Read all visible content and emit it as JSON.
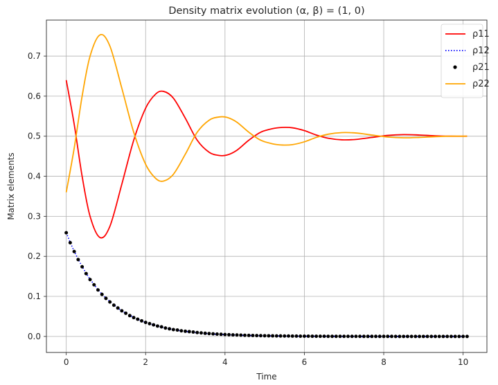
{
  "chart_data": {
    "type": "line",
    "title": "Density matrix evolution (α, β) = (1, 0)",
    "xlabel": "Time",
    "ylabel": "Matrix elements",
    "xlim": [
      -0.5,
      10.6
    ],
    "ylim": [
      -0.04,
      0.79
    ],
    "xticks": [
      0,
      2,
      4,
      6,
      8,
      10
    ],
    "yticks": [
      0.0,
      0.1,
      0.2,
      0.3,
      0.4,
      0.5,
      0.6,
      0.7
    ],
    "grid": true,
    "legend_position": "top-right",
    "series": [
      {
        "name": "ρ11",
        "style": "solid",
        "color": "#ff0000",
        "x": [
          0,
          0.2,
          0.4,
          0.6,
          0.85,
          1.1,
          1.4,
          1.7,
          2.0,
          2.25,
          2.45,
          2.7,
          3.0,
          3.3,
          3.6,
          3.85,
          4.05,
          4.3,
          4.6,
          4.9,
          5.2,
          5.45,
          5.7,
          6.0,
          6.3,
          6.6,
          6.95,
          7.3,
          7.7,
          8.1,
          8.5,
          8.9,
          9.3,
          9.7,
          10.1
        ],
        "y": [
          0.64,
          0.53,
          0.4,
          0.3,
          0.247,
          0.275,
          0.38,
          0.49,
          0.57,
          0.605,
          0.612,
          0.595,
          0.545,
          0.49,
          0.46,
          0.452,
          0.453,
          0.465,
          0.49,
          0.51,
          0.519,
          0.522,
          0.521,
          0.514,
          0.503,
          0.495,
          0.491,
          0.492,
          0.497,
          0.502,
          0.504,
          0.503,
          0.501,
          0.5,
          0.5
        ]
      },
      {
        "name": "ρ12",
        "style": "dotted",
        "color": "#0000ff",
        "x": [
          0,
          0.1,
          0.2,
          0.3,
          0.4,
          0.5,
          0.6,
          0.7,
          0.8,
          0.9,
          1.0,
          1.2,
          1.4,
          1.6,
          1.8,
          2.0,
          2.3,
          2.6,
          3.0,
          3.5,
          4.0,
          4.5,
          5.0,
          5.5,
          6.0,
          7.0,
          8.0,
          9.0,
          10.1
        ],
        "y": [
          0.259,
          0.235,
          0.213,
          0.193,
          0.175,
          0.158,
          0.143,
          0.13,
          0.117,
          0.106,
          0.096,
          0.079,
          0.064,
          0.053,
          0.043,
          0.035,
          0.026,
          0.019,
          0.0125,
          0.0074,
          0.0044,
          0.0026,
          0.0016,
          0.0009,
          0.0005,
          0.0002,
          0.0001,
          0.0,
          0.0
        ]
      },
      {
        "name": "ρ21",
        "style": "dots",
        "color": "#000000",
        "x": [
          0,
          0.1,
          0.2,
          0.3,
          0.4,
          0.5,
          0.6,
          0.7,
          0.8,
          0.9,
          1.0,
          1.1,
          1.2,
          1.3,
          1.4,
          1.5,
          1.6,
          1.7,
          1.8,
          1.9,
          2.0,
          2.1,
          2.2,
          2.3,
          2.4,
          2.5,
          2.6,
          2.7,
          2.8,
          2.9,
          3.0,
          3.1,
          3.2,
          3.3,
          3.4,
          3.5,
          3.6,
          3.7,
          3.8,
          3.9,
          4.0,
          4.1,
          4.2,
          4.3,
          4.4,
          4.5,
          4.6,
          4.7,
          4.8,
          4.9,
          5.0,
          5.1,
          5.2,
          5.3,
          5.4,
          5.5,
          5.6,
          5.7,
          5.8,
          5.9,
          6.0,
          6.1,
          6.2,
          6.3,
          6.4,
          6.5,
          6.6,
          6.7,
          6.8,
          6.9,
          7.0,
          7.1,
          7.2,
          7.3,
          7.4,
          7.5,
          7.6,
          7.7,
          7.8,
          7.9,
          8.0,
          8.1,
          8.2,
          8.3,
          8.4,
          8.5,
          8.6,
          8.7,
          8.8,
          8.9,
          9.0,
          9.1,
          9.2,
          9.3,
          9.4,
          9.5,
          9.6,
          9.7,
          9.8,
          9.9,
          10.0,
          10.1
        ],
        "y": [
          0.259,
          0.234,
          0.212,
          0.192,
          0.174,
          0.157,
          0.142,
          0.129,
          0.116,
          0.105,
          0.095,
          0.086,
          0.078,
          0.071,
          0.064,
          0.058,
          0.052,
          0.047,
          0.043,
          0.039,
          0.035,
          0.032,
          0.029,
          0.026,
          0.024,
          0.021,
          0.019,
          0.017,
          0.016,
          0.014,
          0.013,
          0.012,
          0.011,
          0.0097,
          0.0088,
          0.0079,
          0.0072,
          0.0065,
          0.0059,
          0.0053,
          0.0048,
          0.0044,
          0.0039,
          0.0036,
          0.0032,
          0.0029,
          0.0026,
          0.0024,
          0.0022,
          0.0019,
          0.0018,
          0.0016,
          0.0014,
          0.0013,
          0.0012,
          0.0011,
          0.001,
          0.0009,
          0.0008,
          0.0007,
          0.0006,
          0.0006,
          0.0005,
          0.0005,
          0.0004,
          0.0004,
          0.0003,
          0.0003,
          0.0003,
          0.0003,
          0.0002,
          0.0002,
          0.0002,
          0.0002,
          0.0002,
          0.0001,
          0.0001,
          0.0001,
          0.0001,
          0.0001,
          0.0001,
          0.0001,
          0.0001,
          0.0,
          0.0,
          0.0,
          0.0,
          0.0,
          0.0,
          0.0,
          0.0,
          0.0,
          0.0,
          0.0,
          0.0,
          0.0,
          0.0,
          0.0,
          0.0,
          0.0,
          0.0,
          0.0
        ]
      },
      {
        "name": "ρ22",
        "style": "solid",
        "color": "#ffa500",
        "x": [
          0,
          0.2,
          0.4,
          0.6,
          0.85,
          1.1,
          1.4,
          1.7,
          2.0,
          2.25,
          2.45,
          2.7,
          3.0,
          3.3,
          3.6,
          3.85,
          4.05,
          4.3,
          4.6,
          4.9,
          5.2,
          5.45,
          5.7,
          6.0,
          6.3,
          6.6,
          6.95,
          7.3,
          7.7,
          8.1,
          8.5,
          8.9,
          9.3,
          9.7,
          10.1
        ],
        "y": [
          0.36,
          0.47,
          0.6,
          0.7,
          0.753,
          0.725,
          0.62,
          0.51,
          0.43,
          0.395,
          0.388,
          0.405,
          0.455,
          0.51,
          0.54,
          0.548,
          0.547,
          0.535,
          0.51,
          0.49,
          0.481,
          0.478,
          0.479,
          0.486,
          0.497,
          0.505,
          0.509,
          0.508,
          0.503,
          0.498,
          0.496,
          0.497,
          0.499,
          0.5,
          0.5
        ]
      }
    ]
  }
}
